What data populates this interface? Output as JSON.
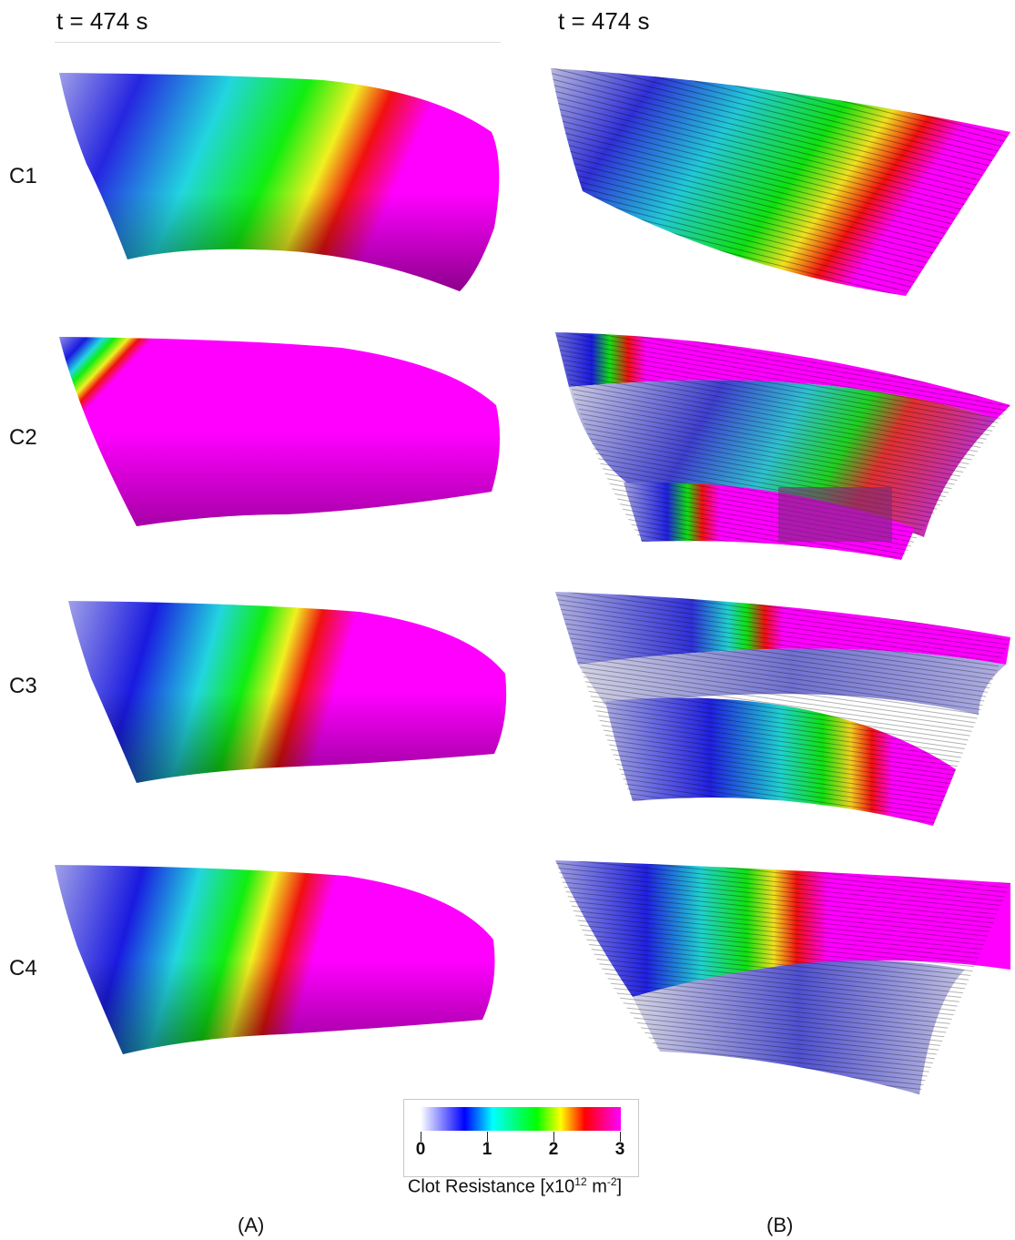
{
  "header": {
    "left": "t = 474 s",
    "right": "t = 474 s"
  },
  "rows": [
    "C1",
    "C2",
    "C3",
    "C4"
  ],
  "colorbar": {
    "ticks": [
      "0",
      "1",
      "2",
      "3"
    ],
    "title_prefix": "Clot Resistance [x10",
    "title_sup1": "12",
    "title_mid": " m",
    "title_sup2": "-2",
    "title_suffix": "]",
    "colors": [
      "#ffffff",
      "#0000ff",
      "#00ffff",
      "#00ff00",
      "#ffff00",
      "#ff0000",
      "#ff00ff"
    ]
  },
  "panel_labels": {
    "a": "(A)",
    "b": "(B)"
  }
}
